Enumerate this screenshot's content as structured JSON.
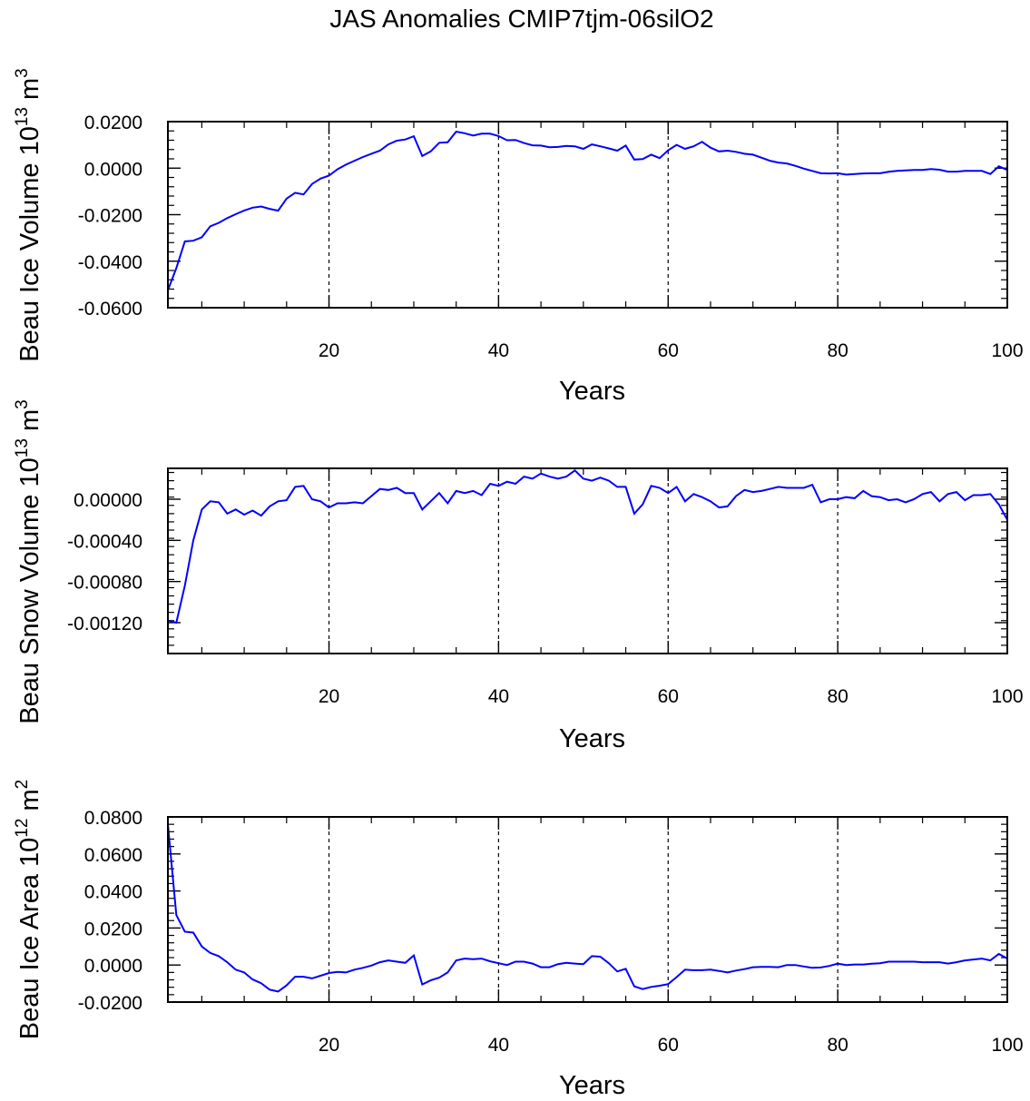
{
  "title": "JAS Anomalies CMIP7tjm-06silO2",
  "chart_data": [
    {
      "type": "line",
      "title": "",
      "xlabel": "Years",
      "ylabel": {
        "base": "Beau Ice Volume 10",
        "exp": "13",
        "unit": " m",
        "unit_exp": "3"
      },
      "xlim": [
        1,
        100
      ],
      "ylim": [
        -0.06,
        0.02
      ],
      "xticks": [
        20,
        40,
        60,
        80,
        100
      ],
      "xtick_labels": [
        "20",
        "40",
        "60",
        "80",
        "100"
      ],
      "yticks": [
        -0.06,
        -0.04,
        -0.02,
        0.0,
        0.02
      ],
      "ytick_labels": [
        "-0.0600",
        "-0.0400",
        "-0.0200",
        "0.0000",
        "0.0200"
      ],
      "vlines": [
        20,
        40,
        60,
        80
      ],
      "grid": false,
      "line_color": "#0000ff",
      "x_start": 1,
      "values": [
        -0.0525,
        -0.043,
        -0.0315,
        -0.0312,
        -0.0297,
        -0.025,
        -0.0235,
        -0.0215,
        -0.0198,
        -0.0182,
        -0.017,
        -0.0165,
        -0.0175,
        -0.0183,
        -0.0131,
        -0.0106,
        -0.0113,
        -0.0068,
        -0.0045,
        -0.0032,
        -0.0005,
        0.0015,
        0.0032,
        0.0048,
        0.0062,
        0.0075,
        0.0102,
        0.0118,
        0.0123,
        0.0137,
        0.0052,
        0.0072,
        0.0109,
        0.0111,
        0.0157,
        0.015,
        0.014,
        0.0148,
        0.0148,
        0.0138,
        0.012,
        0.0121,
        0.0108,
        0.0098,
        0.0097,
        0.009,
        0.0091,
        0.0096,
        0.0094,
        0.0083,
        0.0102,
        0.0094,
        0.0085,
        0.0075,
        0.0097,
        0.0037,
        0.0039,
        0.0058,
        0.0043,
        0.0077,
        0.01,
        0.0083,
        0.0094,
        0.0113,
        0.0088,
        0.0072,
        0.0075,
        0.007,
        0.0062,
        0.0058,
        0.0045,
        0.0032,
        0.0024,
        0.002,
        0.001,
        -0.0002,
        -0.0012,
        -0.0022,
        -0.0023,
        -0.0022,
        -0.0028,
        -0.0025,
        -0.0023,
        -0.0022,
        -0.0022,
        -0.0016,
        -0.0012,
        -0.001,
        -0.0008,
        -0.0008,
        -0.0004,
        -0.0007,
        -0.0015,
        -0.0015,
        -0.0012,
        -0.0012,
        -0.0012,
        -0.0025,
        0.0008,
        -0.0008
      ]
    },
    {
      "type": "line",
      "title": "",
      "xlabel": "Years",
      "ylabel": {
        "base": "Beau Snow Volume 10",
        "exp": "13",
        "unit": " m",
        "unit_exp": "3"
      },
      "xlim": [
        1,
        100
      ],
      "ylim": [
        -0.0015,
        0.0003
      ],
      "xticks": [
        20,
        40,
        60,
        80,
        100
      ],
      "xtick_labels": [
        "20",
        "40",
        "60",
        "80",
        "100"
      ],
      "yticks": [
        -0.0012,
        -0.0008,
        -0.0004,
        0.0
      ],
      "ytick_labels": [
        "-0.00120",
        "-0.00080",
        "-0.00040",
        "0.00000"
      ],
      "vlines": [
        20,
        40,
        60,
        80
      ],
      "grid": false,
      "line_color": "#0000ff",
      "x_start": 1,
      "values": [
        -0.00118,
        -0.0012,
        -0.00084,
        -0.0004,
        -0.0001,
        -2e-05,
        -3e-05,
        -0.00014,
        -0.0001,
        -0.00015,
        -0.00011,
        -0.00016,
        -7e-05,
        -2e-05,
        -1e-05,
        0.00012,
        0.00013,
        0.0,
        -2e-05,
        -8e-05,
        -4e-05,
        -4e-05,
        -3e-05,
        -4e-05,
        3e-05,
        0.0001,
        9e-05,
        0.00011,
        6e-05,
        6e-05,
        -0.0001,
        -2e-05,
        6e-05,
        -4e-05,
        8e-05,
        6e-05,
        8e-05,
        4e-05,
        0.00015,
        0.00013,
        0.00017,
        0.00015,
        0.00022,
        0.0002,
        0.00025,
        0.00022,
        0.0002,
        0.00022,
        0.00028,
        0.0002,
        0.00018,
        0.00021,
        0.00018,
        0.00012,
        0.00012,
        -0.00014,
        -5e-05,
        0.00013,
        0.00011,
        6e-05,
        0.00012,
        -2e-05,
        5e-05,
        2e-05,
        -2e-05,
        -8e-05,
        -7e-05,
        3e-05,
        9e-05,
        7e-05,
        8e-05,
        0.0001,
        0.00012,
        0.00011,
        0.00011,
        0.00011,
        0.00014,
        -3e-05,
        0.0,
        0.0,
        2e-05,
        1e-05,
        8e-05,
        3e-05,
        2e-05,
        -1e-05,
        0.0,
        -3e-05,
        0.0,
        5e-05,
        7e-05,
        -2e-05,
        5e-05,
        7e-05,
        -1e-05,
        4e-05,
        4e-05,
        5e-05,
        -5e-05,
        -0.0002
      ]
    },
    {
      "type": "line",
      "title": "",
      "xlabel": "Years",
      "ylabel": {
        "base": "Beau Ice Area 10",
        "exp": "12",
        "unit": " m",
        "unit_exp": "2"
      },
      "xlim": [
        1,
        100
      ],
      "ylim": [
        -0.02,
        0.08
      ],
      "xticks": [
        20,
        40,
        60,
        80,
        100
      ],
      "xtick_labels": [
        "20",
        "40",
        "60",
        "80",
        "100"
      ],
      "yticks": [
        -0.02,
        0.0,
        0.02,
        0.04,
        0.06,
        0.08
      ],
      "ytick_labels": [
        "-0.0200",
        "0.0000",
        "0.0200",
        "0.0400",
        "0.0600",
        "0.0800"
      ],
      "vlines": [
        20,
        40,
        60,
        80
      ],
      "grid": false,
      "line_color": "#0000ff",
      "x_start": 1,
      "values": [
        0.076,
        0.027,
        0.018,
        0.0175,
        0.01,
        0.0065,
        0.0048,
        0.0015,
        -0.0025,
        -0.004,
        -0.0078,
        -0.0098,
        -0.0133,
        -0.0143,
        -0.011,
        -0.0063,
        -0.0063,
        -0.0072,
        -0.0058,
        -0.0043,
        -0.0037,
        -0.004,
        -0.0025,
        -0.0015,
        -0.0003,
        0.0015,
        0.0025,
        0.0018,
        0.0012,
        0.0052,
        -0.0105,
        -0.0083,
        -0.0068,
        -0.004,
        0.0025,
        0.0035,
        0.0032,
        0.0035,
        0.002,
        0.001,
        0.0,
        0.0018,
        0.0018,
        0.0008,
        -0.0012,
        -0.0012,
        0.0005,
        0.0012,
        0.0008,
        0.0005,
        0.0048,
        0.0045,
        0.001,
        -0.0035,
        -0.002,
        -0.0115,
        -0.013,
        -0.0118,
        -0.0112,
        -0.0103,
        -0.0065,
        -0.0025,
        -0.0028,
        -0.0028,
        -0.0025,
        -0.0032,
        -0.004,
        -0.003,
        -0.0022,
        -0.0012,
        -0.001,
        -0.001,
        -0.0012,
        0.0,
        0.0,
        -0.0008,
        -0.0015,
        -0.0013,
        -0.0005,
        0.0008,
        0.0,
        0.0003,
        0.0003,
        0.0007,
        0.001,
        0.0018,
        0.0018,
        0.0018,
        0.0018,
        0.0015,
        0.0015,
        0.0015,
        0.0008,
        0.0015,
        0.0025,
        0.003,
        0.0035,
        0.0025,
        0.006,
        0.0035
      ]
    }
  ]
}
